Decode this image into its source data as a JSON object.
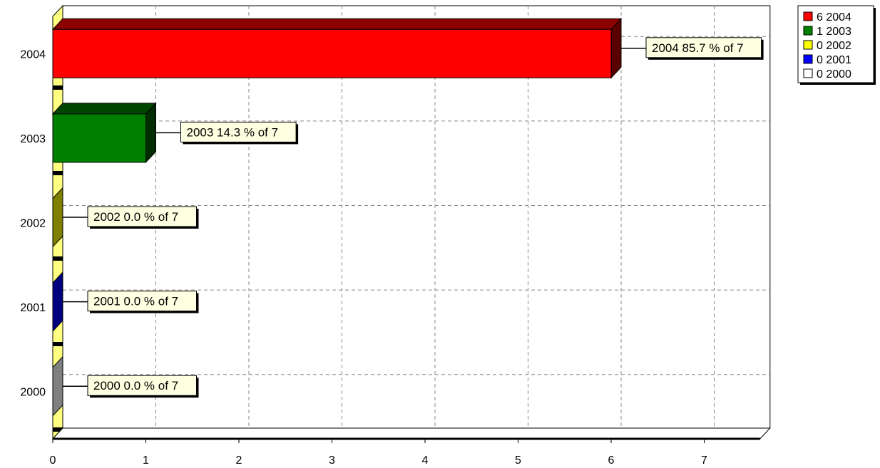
{
  "chart_data": {
    "type": "bar",
    "orientation": "horizontal",
    "style": "3d",
    "categories": [
      "2004",
      "2003",
      "2002",
      "2001",
      "2000"
    ],
    "values": [
      6,
      1,
      0,
      0,
      0
    ],
    "total": 7,
    "colors": [
      "#ff0000",
      "#008000",
      "#ffff00",
      "#0000ff",
      "#ffffff"
    ],
    "data_labels": [
      "2004 85.7 % of 7",
      "2003 14.3 % of 7",
      "2002 0.0 % of 7",
      "2001 0.0 % of 7",
      "2000 0.0 % of 7"
    ],
    "x_ticks": [
      "0",
      "1",
      "2",
      "3",
      "4",
      "5",
      "6",
      "7"
    ],
    "xlim": [
      0,
      7.6
    ],
    "grid": true,
    "legend": {
      "position": "top-right",
      "entries": [
        {
          "label": "6 2004",
          "color": "#ff0000"
        },
        {
          "label": "1 2003",
          "color": "#008000"
        },
        {
          "label": "0 2002",
          "color": "#ffff00"
        },
        {
          "label": "0 2001",
          "color": "#0000ff"
        },
        {
          "label": "0 2000",
          "color": "#ffffff"
        }
      ]
    },
    "title": "",
    "xlabel": "",
    "ylabel": ""
  }
}
